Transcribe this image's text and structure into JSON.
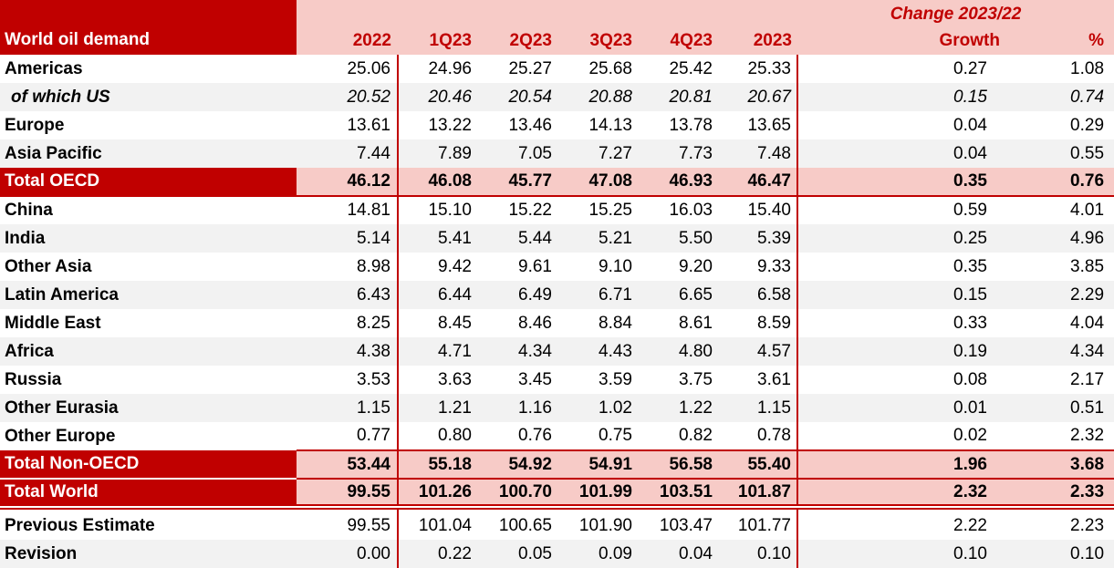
{
  "table": {
    "title": "World oil demand",
    "change_header": "Change 2023/22",
    "columns": [
      "2022",
      "1Q23",
      "2Q23",
      "3Q23",
      "4Q23",
      "2023",
      "Growth",
      "%"
    ],
    "rows": [
      {
        "label": "Americas",
        "kind": "region",
        "values": [
          "25.06",
          "24.96",
          "25.27",
          "25.68",
          "25.42",
          "25.33",
          "0.27",
          "1.08"
        ]
      },
      {
        "label": "of which US",
        "kind": "sub",
        "values": [
          "20.52",
          "20.46",
          "20.54",
          "20.88",
          "20.81",
          "20.67",
          "0.15",
          "0.74"
        ]
      },
      {
        "label": "Europe",
        "kind": "region",
        "values": [
          "13.61",
          "13.22",
          "13.46",
          "14.13",
          "13.78",
          "13.65",
          "0.04",
          "0.29"
        ]
      },
      {
        "label": "Asia Pacific",
        "kind": "region",
        "values": [
          "7.44",
          "7.89",
          "7.05",
          "7.27",
          "7.73",
          "7.48",
          "0.04",
          "0.55"
        ]
      },
      {
        "label": "Total OECD",
        "kind": "total-oecd",
        "values": [
          "46.12",
          "46.08",
          "45.77",
          "47.08",
          "46.93",
          "46.47",
          "0.35",
          "0.76"
        ]
      },
      {
        "label": "China",
        "kind": "region",
        "values": [
          "14.81",
          "15.10",
          "15.22",
          "15.25",
          "16.03",
          "15.40",
          "0.59",
          "4.01"
        ]
      },
      {
        "label": "India",
        "kind": "region",
        "values": [
          "5.14",
          "5.41",
          "5.44",
          "5.21",
          "5.50",
          "5.39",
          "0.25",
          "4.96"
        ]
      },
      {
        "label": "Other Asia",
        "kind": "region",
        "values": [
          "8.98",
          "9.42",
          "9.61",
          "9.10",
          "9.20",
          "9.33",
          "0.35",
          "3.85"
        ]
      },
      {
        "label": "Latin America",
        "kind": "region",
        "values": [
          "6.43",
          "6.44",
          "6.49",
          "6.71",
          "6.65",
          "6.58",
          "0.15",
          "2.29"
        ]
      },
      {
        "label": "Middle East",
        "kind": "region",
        "values": [
          "8.25",
          "8.45",
          "8.46",
          "8.84",
          "8.61",
          "8.59",
          "0.33",
          "4.04"
        ]
      },
      {
        "label": "Africa",
        "kind": "region",
        "values": [
          "4.38",
          "4.71",
          "4.34",
          "4.43",
          "4.80",
          "4.57",
          "0.19",
          "4.34"
        ]
      },
      {
        "label": "Russia",
        "kind": "region",
        "values": [
          "3.53",
          "3.63",
          "3.45",
          "3.59",
          "3.75",
          "3.61",
          "0.08",
          "2.17"
        ]
      },
      {
        "label": "Other Eurasia",
        "kind": "region",
        "values": [
          "1.15",
          "1.21",
          "1.16",
          "1.02",
          "1.22",
          "1.15",
          "0.01",
          "0.51"
        ]
      },
      {
        "label": "Other Europe",
        "kind": "region",
        "values": [
          "0.77",
          "0.80",
          "0.76",
          "0.75",
          "0.82",
          "0.78",
          "0.02",
          "2.32"
        ]
      },
      {
        "label": "Total Non-OECD",
        "kind": "total-nonoecd",
        "values": [
          "53.44",
          "55.18",
          "54.92",
          "54.91",
          "56.58",
          "55.40",
          "1.96",
          "3.68"
        ]
      },
      {
        "label": "Total World",
        "kind": "total-world",
        "values": [
          "99.55",
          "101.26",
          "100.70",
          "101.99",
          "103.51",
          "101.87",
          "2.32",
          "2.33"
        ]
      },
      {
        "label": "Previous Estimate",
        "kind": "region",
        "values": [
          "99.55",
          "101.04",
          "100.65",
          "101.90",
          "103.47",
          "101.77",
          "2.22",
          "2.23"
        ]
      },
      {
        "label": "Revision",
        "kind": "region",
        "values": [
          "0.00",
          "0.22",
          "0.05",
          "0.09",
          "0.04",
          "0.10",
          "0.10",
          "0.10"
        ]
      }
    ]
  },
  "colors": {
    "accent_red": "#C00000",
    "header_pink": "#F7CBC7",
    "row_stripe": "#F2F2F2",
    "text": "#000000"
  }
}
